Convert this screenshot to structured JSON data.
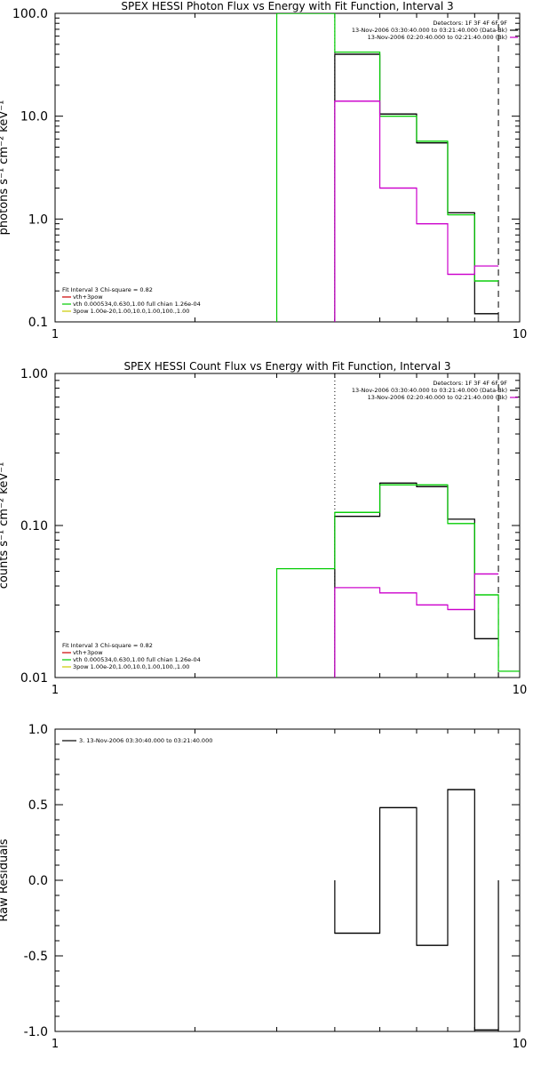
{
  "chart_data": [
    {
      "type": "line",
      "title": "SPEX HESSI Photon Flux vs Energy with Fit Function, Interval 3",
      "ylabel": "photons s⁻¹ cm⁻² keV⁻¹",
      "xlabel": "",
      "xscale": "log",
      "yscale": "log",
      "xlim": [
        1,
        10
      ],
      "ylim": [
        0.1,
        100
      ],
      "xticks": [
        1,
        10
      ],
      "xtick_labels": [
        "1",
        "10"
      ],
      "yticks": [
        0.1,
        1,
        10,
        100
      ],
      "ytick_labels": [
        "0.1",
        "1.0",
        "10.0",
        "100.0"
      ],
      "grid": false,
      "vlines": [
        {
          "x": 4.0,
          "style": "dotted"
        },
        {
          "x": 9.0,
          "style": "dashed"
        }
      ],
      "legend_top_right": [
        {
          "text": "Detectors: 1F 3F 4F 6F 9F",
          "color": null
        },
        {
          "text": "13-Nov-2006 03:30:40.000 to 03:21:40.000 (Data-Bk)",
          "color": "#000000"
        },
        {
          "text": "13-Nov-2006 02:20:40.000 to 02:21:40.000 (Bk)",
          "color": "#cc00cc"
        }
      ],
      "legend_bottom_left": [
        {
          "text": "Fit Interval 3   Chi-square = 0.82",
          "color": null
        },
        {
          "text": "vth+3pow",
          "color": "#cc0000"
        },
        {
          "text": "vth 0.000534,0.630,1.00  full chian 1.26e-04",
          "color": "#00cc00"
        },
        {
          "text": "3pow 1.00e-20,1.00,10.0,1.00,100.,1.00",
          "color": "#cccc00"
        }
      ],
      "series": [
        {
          "color": "#000000",
          "edges": [
            4,
            5,
            6,
            7,
            8,
            9
          ],
          "values": [
            40,
            10.5,
            5.5,
            1.15,
            0.12
          ]
        },
        {
          "color": "#00cc00",
          "edges": [
            3,
            4,
            5,
            6,
            7,
            8,
            9
          ],
          "values": [
            100,
            42,
            10,
            5.7,
            1.1,
            0.25
          ]
        },
        {
          "color": "#cc00cc",
          "edges": [
            4,
            5,
            6,
            7,
            8,
            9
          ],
          "values": [
            14,
            2.0,
            0.9,
            0.29,
            0.35
          ]
        }
      ]
    },
    {
      "type": "line",
      "title": "SPEX HESSI Count Flux vs Energy with Fit Function, Interval 3",
      "ylabel": "counts s⁻¹ cm⁻² keV⁻¹",
      "xlabel": "",
      "xscale": "log",
      "yscale": "log",
      "xlim": [
        1,
        10
      ],
      "ylim": [
        0.01,
        1
      ],
      "xticks": [
        1,
        10
      ],
      "xtick_labels": [
        "1",
        "10"
      ],
      "yticks": [
        0.01,
        0.1,
        1
      ],
      "ytick_labels": [
        "0.01",
        "0.10",
        "1.00"
      ],
      "grid": false,
      "vlines": [
        {
          "x": 4.0,
          "style": "dotted"
        },
        {
          "x": 9.0,
          "style": "dashed"
        }
      ],
      "legend_top_right": [
        {
          "text": "Detectors: 1F 3F 4F 6F 9F",
          "color": null
        },
        {
          "text": "13-Nov-2006 03:30:40.000 to 03:21:40.000 (Data-Bk)",
          "color": "#000000"
        },
        {
          "text": "13-Nov-2006 02:20:40.000 to 02:21:40.000 (Bk)",
          "color": "#cc00cc"
        }
      ],
      "legend_bottom_left": [
        {
          "text": "Fit Interval 3   Chi-square = 0.82",
          "color": null
        },
        {
          "text": "vth+3pow",
          "color": "#cc0000"
        },
        {
          "text": "vth 0.000534,0.630,1.00  full chian 1.26e-04",
          "color": "#00cc00"
        },
        {
          "text": "3pow 1.00e-20,1.00,10.0,1.00,100.,1.00",
          "color": "#cccc00"
        }
      ],
      "series": [
        {
          "color": "#000000",
          "edges": [
            4,
            5,
            6,
            7,
            8,
            9
          ],
          "values": [
            0.115,
            0.19,
            0.18,
            0.11,
            0.018
          ]
        },
        {
          "color": "#00cc00",
          "edges": [
            3,
            4,
            5,
            6,
            7,
            8,
            9,
            10
          ],
          "values": [
            0.052,
            0.122,
            0.185,
            0.185,
            0.103,
            0.035,
            0.011
          ]
        },
        {
          "color": "#cc00cc",
          "edges": [
            4,
            5,
            6,
            7,
            8,
            9
          ],
          "values": [
            0.039,
            0.036,
            0.03,
            0.028,
            0.048
          ]
        }
      ]
    },
    {
      "type": "line",
      "title": "",
      "ylabel": "Raw Residuals",
      "xlabel": "",
      "xscale": "log",
      "yscale": "linear",
      "xlim": [
        1,
        10
      ],
      "ylim": [
        -1,
        1
      ],
      "xticks": [
        1,
        10
      ],
      "xtick_labels": [
        "1",
        "10"
      ],
      "yticks": [
        -1,
        -0.5,
        0,
        0.5,
        1
      ],
      "ytick_labels": [
        "-1.0",
        "-0.5",
        "0.0",
        "0.5",
        "1.0"
      ],
      "grid": false,
      "vlines": [],
      "legend_top_left": [
        {
          "text": "3. 13-Nov-2006 03:30:40.000 to 03:21:40.000",
          "color": "#000000"
        }
      ],
      "series": [
        {
          "color": "#000000",
          "edges": [
            4,
            5,
            6,
            7,
            8,
            9
          ],
          "values": [
            -0.35,
            0.48,
            -0.43,
            0.6,
            -0.99
          ]
        }
      ]
    }
  ]
}
